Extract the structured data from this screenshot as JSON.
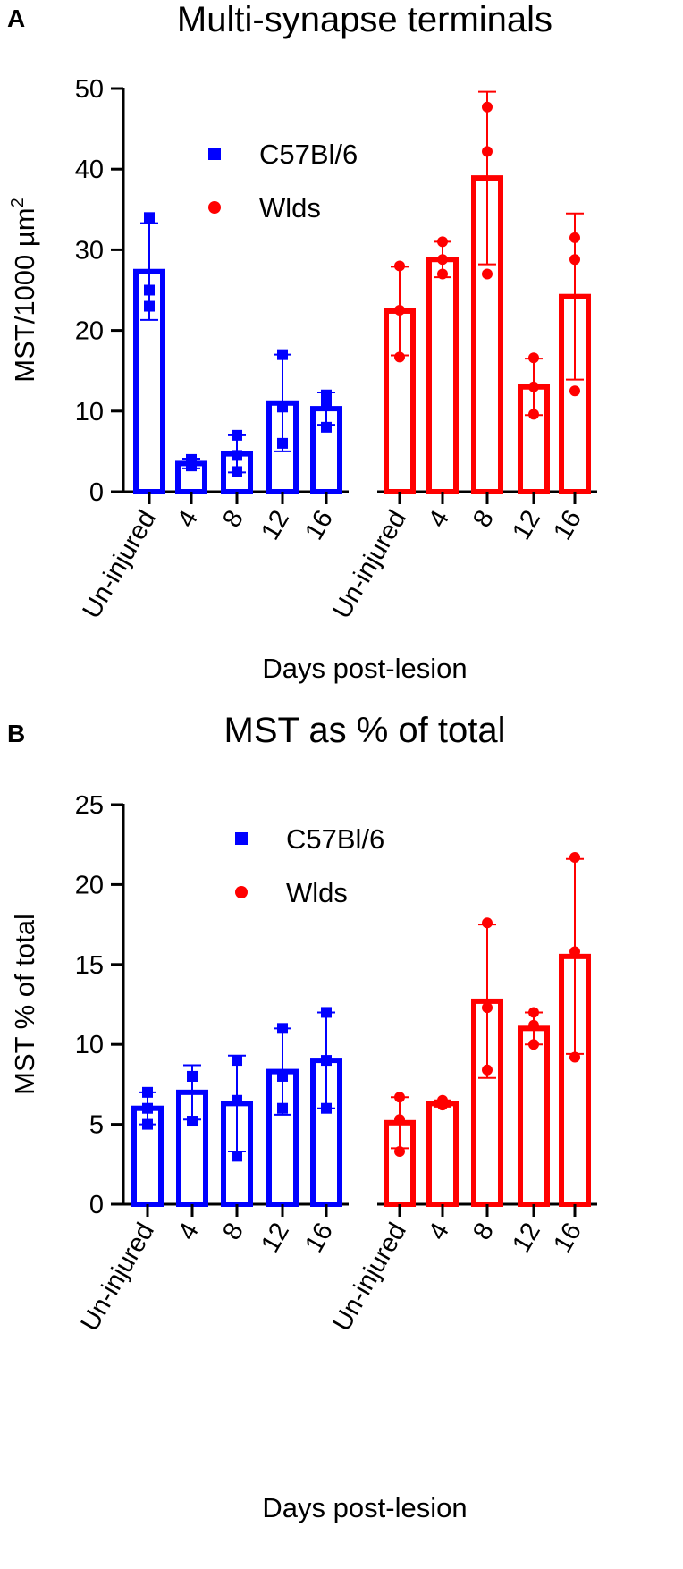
{
  "chart_data": [
    {
      "type": "bar",
      "panel_label": "A",
      "title": "Multi-synapse terminals",
      "ylabel": "MST/1000 µm",
      "ylabel_sup": "2",
      "xlabel": "Days post-lesion",
      "ylim": [
        0,
        50
      ],
      "yticks": [
        0,
        10,
        20,
        30,
        40,
        50
      ],
      "legend": {
        "position": "top-left",
        "entries": [
          {
            "name": "C57Bl/6",
            "marker": "square",
            "color": "#0000ff"
          },
          {
            "name": "Wlds",
            "marker": "circle",
            "color": "#ff0000"
          }
        ]
      },
      "series": [
        {
          "name": "C57Bl/6",
          "color": "#0000ff",
          "marker": "square",
          "categories": [
            "Un-injured",
            "4",
            "8",
            "12",
            "16"
          ],
          "values": [
            27.3,
            3.5,
            4.7,
            11,
            10.3
          ],
          "errors": [
            6,
            0.6,
            2.3,
            6,
            2
          ],
          "points": [
            [
              34,
              25,
              23
            ],
            [
              3.2,
              3.6,
              4
            ],
            [
              7,
              4.5,
              2.5
            ],
            [
              17,
              10.5,
              6
            ],
            [
              12,
              11,
              8
            ]
          ]
        },
        {
          "name": "Wlds",
          "color": "#ff0000",
          "marker": "circle",
          "categories": [
            "Un-injured",
            "4",
            "8",
            "12",
            "16"
          ],
          "values": [
            22.4,
            28.8,
            38.9,
            13,
            24.2
          ],
          "errors": [
            5.5,
            2.2,
            10.7,
            3.5,
            10.3
          ],
          "points": [
            [
              28,
              22.5,
              16.7
            ],
            [
              31,
              28.8,
              27
            ],
            [
              47.7,
              42.2,
              27
            ],
            [
              16.6,
              13,
              9.6
            ],
            [
              31.5,
              28.8,
              12.5
            ]
          ]
        }
      ]
    },
    {
      "type": "bar",
      "panel_label": "B",
      "title": "MST as % of total",
      "ylabel": "MST % of total",
      "xlabel": "Days post-lesion",
      "ylim": [
        0,
        25
      ],
      "yticks": [
        0,
        5,
        10,
        15,
        20,
        25
      ],
      "legend": {
        "position": "top-center",
        "entries": [
          {
            "name": "C57Bl/6",
            "marker": "square",
            "color": "#0000ff"
          },
          {
            "name": "Wlds",
            "marker": "circle",
            "color": "#ff0000"
          }
        ]
      },
      "series": [
        {
          "name": "C57Bl/6",
          "color": "#0000ff",
          "marker": "square",
          "categories": [
            "Un-injured",
            "4",
            "8",
            "12",
            "16"
          ],
          "values": [
            6,
            7,
            6.3,
            8.3,
            9
          ],
          "errors": [
            1,
            1.7,
            3,
            2.7,
            3
          ],
          "points": [
            [
              7,
              6,
              5
            ],
            [
              8,
              8,
              5.2
            ],
            [
              9,
              6.5,
              3
            ],
            [
              11,
              8,
              6
            ],
            [
              12,
              9,
              6
            ]
          ]
        },
        {
          "name": "Wlds",
          "color": "#ff0000",
          "marker": "circle",
          "categories": [
            "Un-injured",
            "4",
            "8",
            "12",
            "16"
          ],
          "values": [
            5.1,
            6.3,
            12.7,
            11,
            15.5
          ],
          "errors": [
            1.6,
            0.2,
            4.8,
            1,
            6.1
          ],
          "points": [
            [
              6.7,
              5.3,
              3.3
            ],
            [
              6.5,
              6.3,
              6.2
            ],
            [
              17.6,
              12.3,
              8.4
            ],
            [
              12,
              11.2,
              10
            ],
            [
              21.7,
              15.8,
              9.2
            ]
          ]
        }
      ]
    }
  ]
}
